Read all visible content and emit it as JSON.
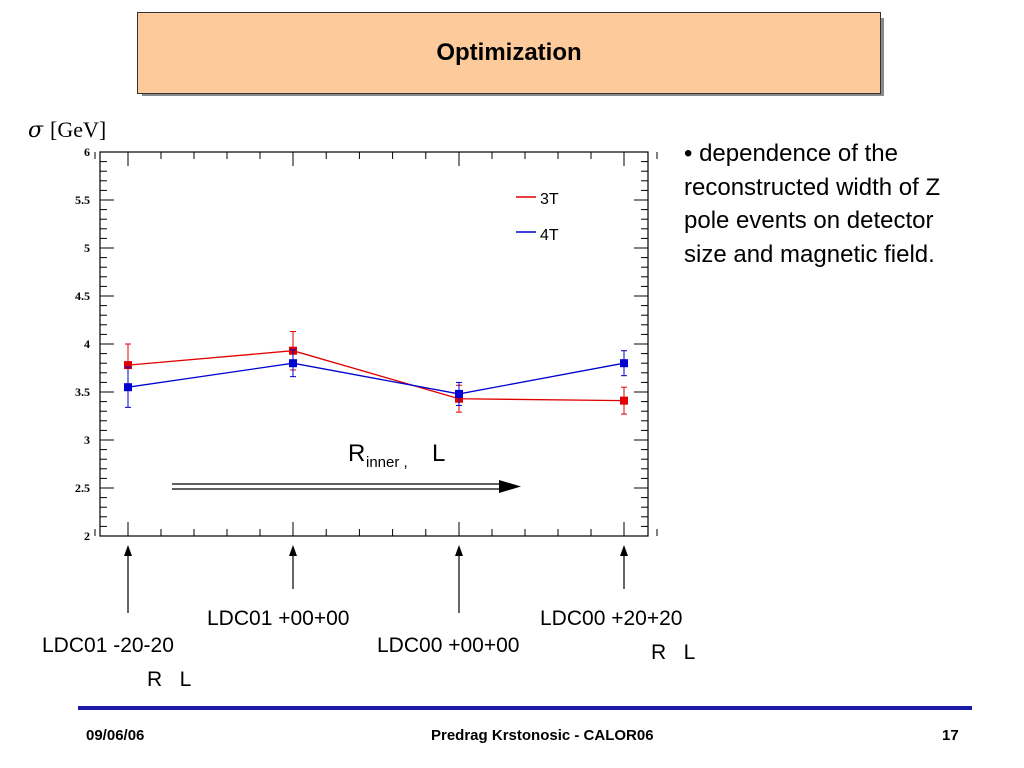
{
  "header": {
    "title": "Optimization"
  },
  "bullet": {
    "text": "• dependence of the reconstructed width of Z pole events on detector size and magnetic field."
  },
  "chart_data": {
    "type": "line",
    "ylabel": "[GeV]",
    "ylabel_symbol": "σ",
    "ylim": [
      2,
      6
    ],
    "yticks": [
      "2",
      "2.5",
      "3",
      "3.5",
      "4",
      "4.5",
      "5",
      "5.5",
      "6"
    ],
    "x": [
      1,
      2,
      3,
      4
    ],
    "series": [
      {
        "name": "3T",
        "color": "#e00000",
        "values": [
          3.78,
          3.93,
          3.43,
          3.41
        ],
        "errors": [
          0.22,
          0.2,
          0.14,
          0.14
        ]
      },
      {
        "name": "4T",
        "color": "#0000d0",
        "values": [
          3.55,
          3.8,
          3.48,
          3.8
        ],
        "errors": [
          0.21,
          0.14,
          0.12,
          0.13
        ]
      }
    ],
    "legend_position": "top-right",
    "annotation": {
      "main": "R",
      "sub": "inner ,",
      "tail": "L"
    },
    "configs": [
      {
        "name": "LDC01 -20-20",
        "sub": "R   L"
      },
      {
        "name": "LDC01 +00+00",
        "sub": ""
      },
      {
        "name": "LDC00 +00+00",
        "sub": ""
      },
      {
        "name": "LDC00 +20+20",
        "sub": "R   L"
      }
    ]
  },
  "footer": {
    "date": "09/06/06",
    "author": "Predrag Krstonosic -  CALOR06",
    "page": "17"
  }
}
